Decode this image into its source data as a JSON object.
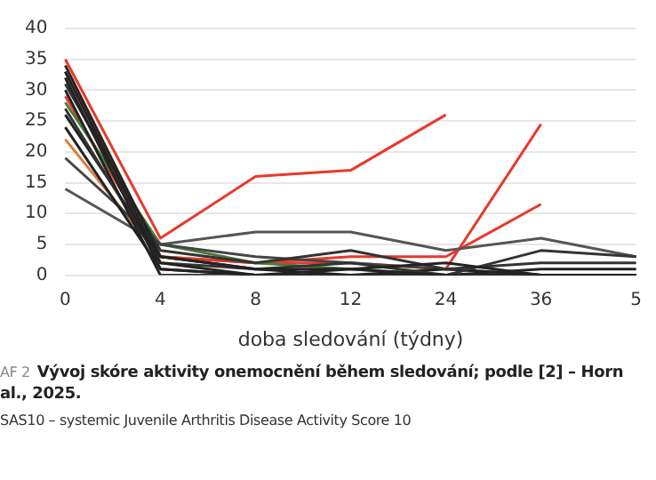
{
  "chart_data": {
    "type": "line",
    "xlabel": "doba sledování (týdny)",
    "categories": [
      "0",
      "4",
      "8",
      "12",
      "24",
      "36",
      "5"
    ],
    "ylim": [
      0,
      40
    ],
    "yticks": [
      0,
      5,
      10,
      15,
      20,
      25,
      30,
      35,
      40
    ],
    "grid": "y",
    "legend": false,
    "marker": "none",
    "line_style": "solid",
    "series": [
      {
        "color": "#222222",
        "values": [
          34,
          3,
          1,
          1,
          0,
          0,
          0
        ]
      },
      {
        "color": "#222222",
        "values": [
          33,
          2,
          0,
          0,
          0,
          0,
          0
        ]
      },
      {
        "color": "#222222",
        "values": [
          32,
          1,
          0,
          1,
          2,
          0,
          0
        ]
      },
      {
        "color": "#333333",
        "values": [
          31,
          4,
          2,
          4,
          1,
          2,
          2
        ]
      },
      {
        "color": "#222222",
        "values": [
          30,
          0,
          0,
          0,
          0,
          0,
          0
        ]
      },
      {
        "color": "#333333",
        "values": [
          27,
          2,
          1,
          2,
          0,
          4,
          3
        ]
      },
      {
        "color": "#222222",
        "values": [
          26,
          3,
          1,
          0,
          1,
          0,
          0
        ]
      },
      {
        "color": "#222222",
        "values": [
          24,
          1,
          0,
          0,
          0,
          1,
          1
        ]
      },
      {
        "color": "#444444",
        "values": [
          19,
          5,
          3,
          2,
          1,
          0,
          0
        ]
      },
      {
        "color": "#555555",
        "values": [
          14,
          5,
          7,
          7,
          4,
          6,
          3
        ]
      },
      {
        "color": "#e07b39",
        "values": [
          22,
          3,
          null,
          null,
          null,
          null,
          null
        ]
      },
      {
        "color": "#4a7a3a",
        "values": [
          28,
          5,
          2,
          1,
          0,
          null,
          null
        ]
      },
      {
        "color": "#e8392a",
        "values": [
          35,
          6,
          16,
          17,
          26,
          null,
          null
        ]
      },
      {
        "color": "#e8392a",
        "values": [
          33,
          3,
          2,
          2,
          1,
          24.5,
          null
        ]
      },
      {
        "color": "#e8392a",
        "values": [
          29,
          3,
          2,
          3,
          3,
          11.5,
          null
        ]
      }
    ],
    "annotations": [
      "AF 2",
      "Vývoj skóre aktivity onemocnění během sledování; podle [2] – Horn",
      "al., 2025.",
      "SAS10 – systemic Juvenile Arthritis Disease Activity Score 10"
    ]
  }
}
